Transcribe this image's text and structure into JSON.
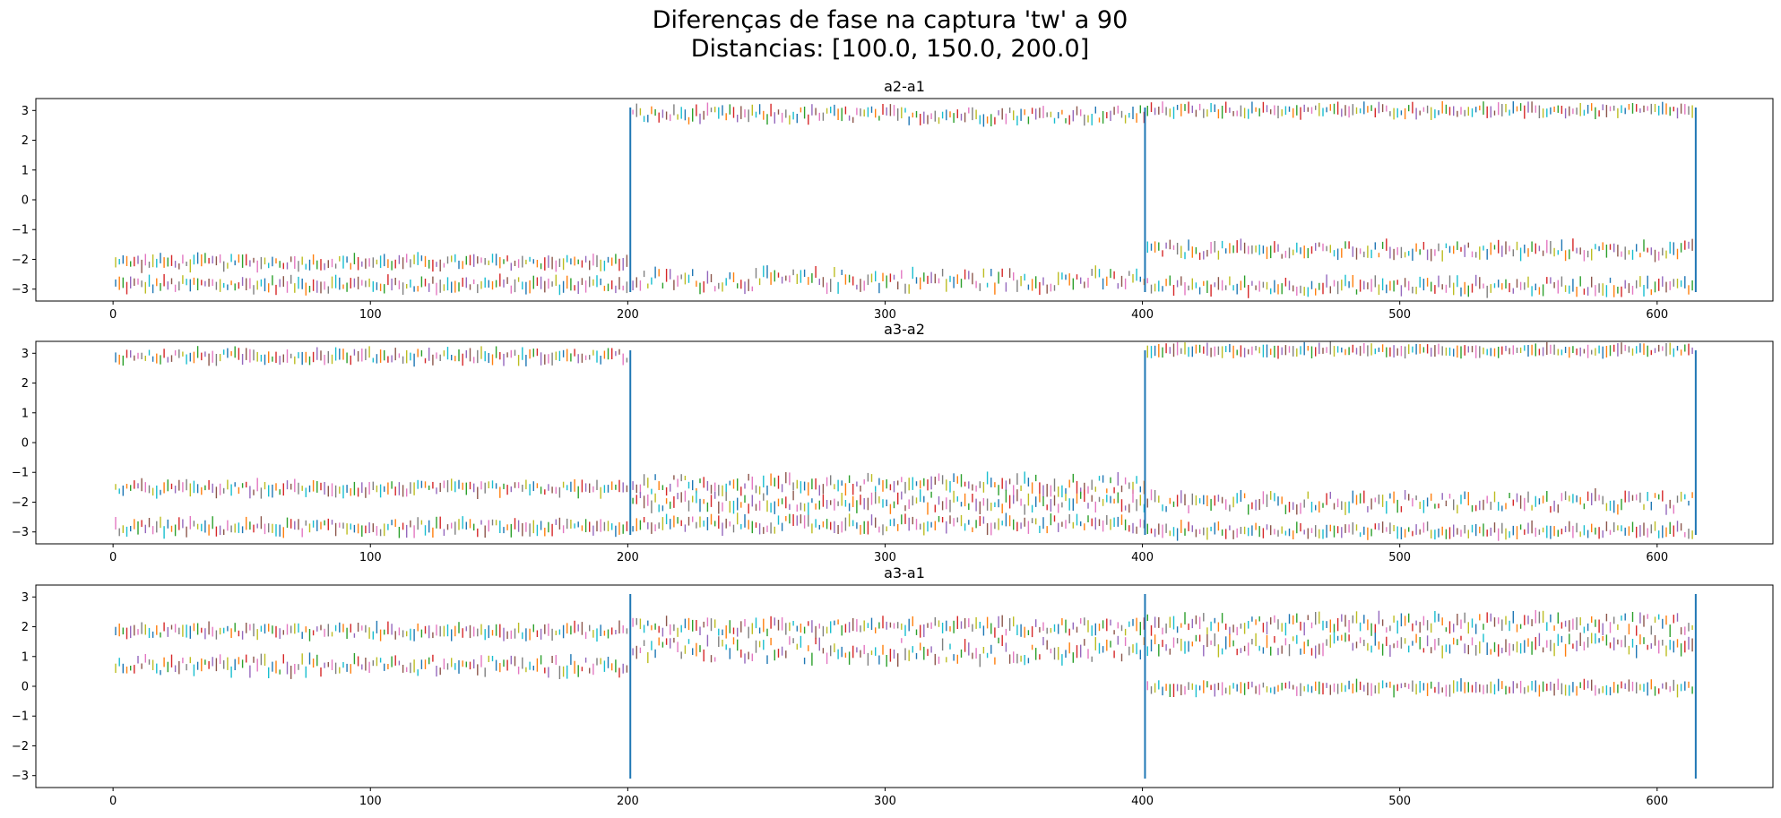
{
  "figure": {
    "suptitle_line1": "Diferenças de fase na captura 'tw' a 90",
    "suptitle_line2": "Distancias: [100.0, 150.0, 200.0]"
  },
  "palette": [
    "#1f77b4",
    "#ff7f0e",
    "#2ca02c",
    "#d62728",
    "#9467bd",
    "#8c564b",
    "#e377c2",
    "#7f7f7f",
    "#bcbd22",
    "#17becf"
  ],
  "chart_data": [
    {
      "type": "line",
      "title": "a2-a1",
      "xlim": [
        -30,
        645
      ],
      "ylim": [
        -3.4,
        3.4
      ],
      "xticks": [
        0,
        100,
        200,
        300,
        400,
        500,
        600
      ],
      "yticks": [
        -3,
        -2,
        -1,
        0,
        1,
        2,
        3
      ],
      "grid": false,
      "vlines": [
        201,
        401,
        615
      ],
      "bands": [
        {
          "x": [
            0,
            201
          ],
          "center": -2.85,
          "spread": 0.18
        },
        {
          "x": [
            0,
            201
          ],
          "center": -2.1,
          "spread": 0.15
        },
        {
          "x": [
            201,
            401
          ],
          "center": 2.85,
          "spread": 0.2
        },
        {
          "x": [
            201,
            401
          ],
          "center": -2.7,
          "spread": 0.3
        },
        {
          "x": [
            401,
            615
          ],
          "center": 3.0,
          "spread": 0.12
        },
        {
          "x": [
            401,
            615
          ],
          "center": -1.7,
          "spread": 0.2
        },
        {
          "x": [
            401,
            615
          ],
          "center": -2.9,
          "spread": 0.2
        }
      ]
    },
    {
      "type": "line",
      "title": "a3-a2",
      "xlim": [
        -30,
        645
      ],
      "ylim": [
        -3.4,
        3.4
      ],
      "xticks": [
        0,
        100,
        200,
        300,
        400,
        500,
        600
      ],
      "yticks": [
        -3,
        -2,
        -1,
        0,
        1,
        2,
        3
      ],
      "grid": false,
      "vlines": [
        201,
        401,
        615
      ],
      "bands": [
        {
          "x": [
            0,
            201
          ],
          "center": 2.9,
          "spread": 0.15
        },
        {
          "x": [
            0,
            201
          ],
          "center": -1.55,
          "spread": 0.15
        },
        {
          "x": [
            0,
            201
          ],
          "center": -2.85,
          "spread": 0.18
        },
        {
          "x": [
            201,
            401
          ],
          "center": -1.4,
          "spread": 0.25
        },
        {
          "x": [
            201,
            401
          ],
          "center": -2.0,
          "spread": 0.25
        },
        {
          "x": [
            201,
            401
          ],
          "center": -2.75,
          "spread": 0.2
        },
        {
          "x": [
            401,
            615
          ],
          "center": 3.1,
          "spread": 0.08
        },
        {
          "x": [
            401,
            615
          ],
          "center": -2.0,
          "spread": 0.25
        },
        {
          "x": [
            401,
            615
          ],
          "center": -2.95,
          "spread": 0.15
        }
      ]
    },
    {
      "type": "line",
      "title": "a3-a1",
      "xlim": [
        -30,
        645
      ],
      "ylim": [
        -3.4,
        3.4
      ],
      "xticks": [
        0,
        100,
        200,
        300,
        400,
        500,
        600
      ],
      "yticks": [
        -3,
        -2,
        -1,
        0,
        1,
        2,
        3
      ],
      "grid": false,
      "vlines": [
        201,
        401,
        615
      ],
      "bands": [
        {
          "x": [
            0,
            201
          ],
          "center": 1.85,
          "spread": 0.15
        },
        {
          "x": [
            0,
            201
          ],
          "center": 0.7,
          "spread": 0.25
        },
        {
          "x": [
            201,
            401
          ],
          "center": 2.0,
          "spread": 0.2
        },
        {
          "x": [
            201,
            401
          ],
          "center": 1.2,
          "spread": 0.35
        },
        {
          "x": [
            401,
            615
          ],
          "center": 2.1,
          "spread": 0.25
        },
        {
          "x": [
            401,
            615
          ],
          "center": 1.4,
          "spread": 0.25
        },
        {
          "x": [
            401,
            615
          ],
          "center": -0.05,
          "spread": 0.12
        }
      ]
    }
  ]
}
